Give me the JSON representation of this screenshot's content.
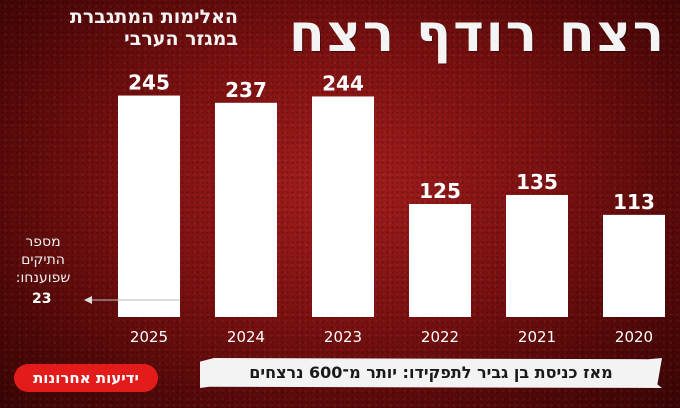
{
  "header": {
    "title": "רצח רודף רצח",
    "subtitle_line1": "האלימות המתגברת",
    "subtitle_line2": "במגזר הערבי"
  },
  "annotation": {
    "line1": "מספר",
    "line2": "התיקים",
    "line3": "שפוענחו:",
    "value": "23"
  },
  "banner": {
    "text": "מאז כניסת בן גביר לתפקידו: יותר מ־600 נרצחים"
  },
  "logo": {
    "text": "ידיעות אחרונות"
  },
  "colors": {
    "background": "#7a1010",
    "bars": "#ffffff",
    "logo_red": "#e31b1b"
  },
  "chart_data": {
    "type": "bar",
    "categories": [
      "2025",
      "2024",
      "2023",
      "2022",
      "2021",
      "2020"
    ],
    "values": [
      245,
      237,
      244,
      125,
      135,
      113
    ],
    "ylim": [
      0,
      260
    ],
    "grid": false,
    "legend": "none",
    "annotations": [
      {
        "category": "2025",
        "label": "מספר התיקים שפוענחו:",
        "value": 23
      }
    ]
  }
}
